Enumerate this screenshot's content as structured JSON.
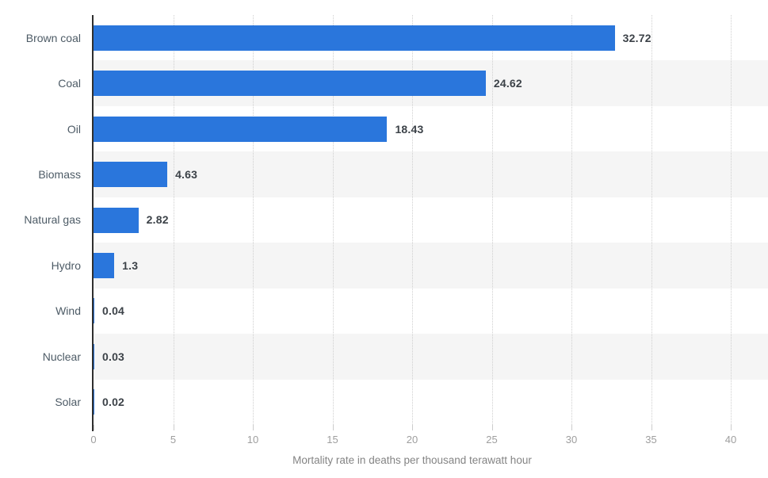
{
  "chart_data": {
    "type": "bar",
    "orientation": "horizontal",
    "title": "",
    "categories": [
      "Brown coal",
      "Coal",
      "Oil",
      "Biomass",
      "Natural gas",
      "Hydro",
      "Wind",
      "Nuclear",
      "Solar"
    ],
    "values": [
      32.72,
      24.62,
      18.43,
      4.63,
      2.82,
      1.3,
      0.04,
      0.03,
      0.02
    ],
    "value_labels": [
      "32.72",
      "24.62",
      "18.43",
      "4.63",
      "2.82",
      "1.3",
      "0.04",
      "0.03",
      "0.02"
    ],
    "xlabel": "Mortality rate in deaths per thousand terawatt hour",
    "ylabel": "",
    "xlim": [
      0,
      40
    ],
    "ticks": [
      0,
      5,
      10,
      15,
      20,
      25,
      30,
      35,
      40
    ],
    "tick_labels": [
      "0",
      "5",
      "10",
      "15",
      "20",
      "25",
      "30",
      "35",
      "40"
    ],
    "grid": "vertical-dotted",
    "legend_position": "none",
    "row_stripes": "alternating, starting on second row, spanning plot area to right edge",
    "colors": {
      "bar": "#2a76dc",
      "stripe": "#f5f5f5",
      "gridline": "#cfcfcf",
      "axis_line": "#2f2f2f",
      "category_label": "#4d5b66",
      "value_label": "#3c4248",
      "tick_label": "#9e9e9e",
      "axis_title": "#848484",
      "background": "#ffffff"
    }
  }
}
